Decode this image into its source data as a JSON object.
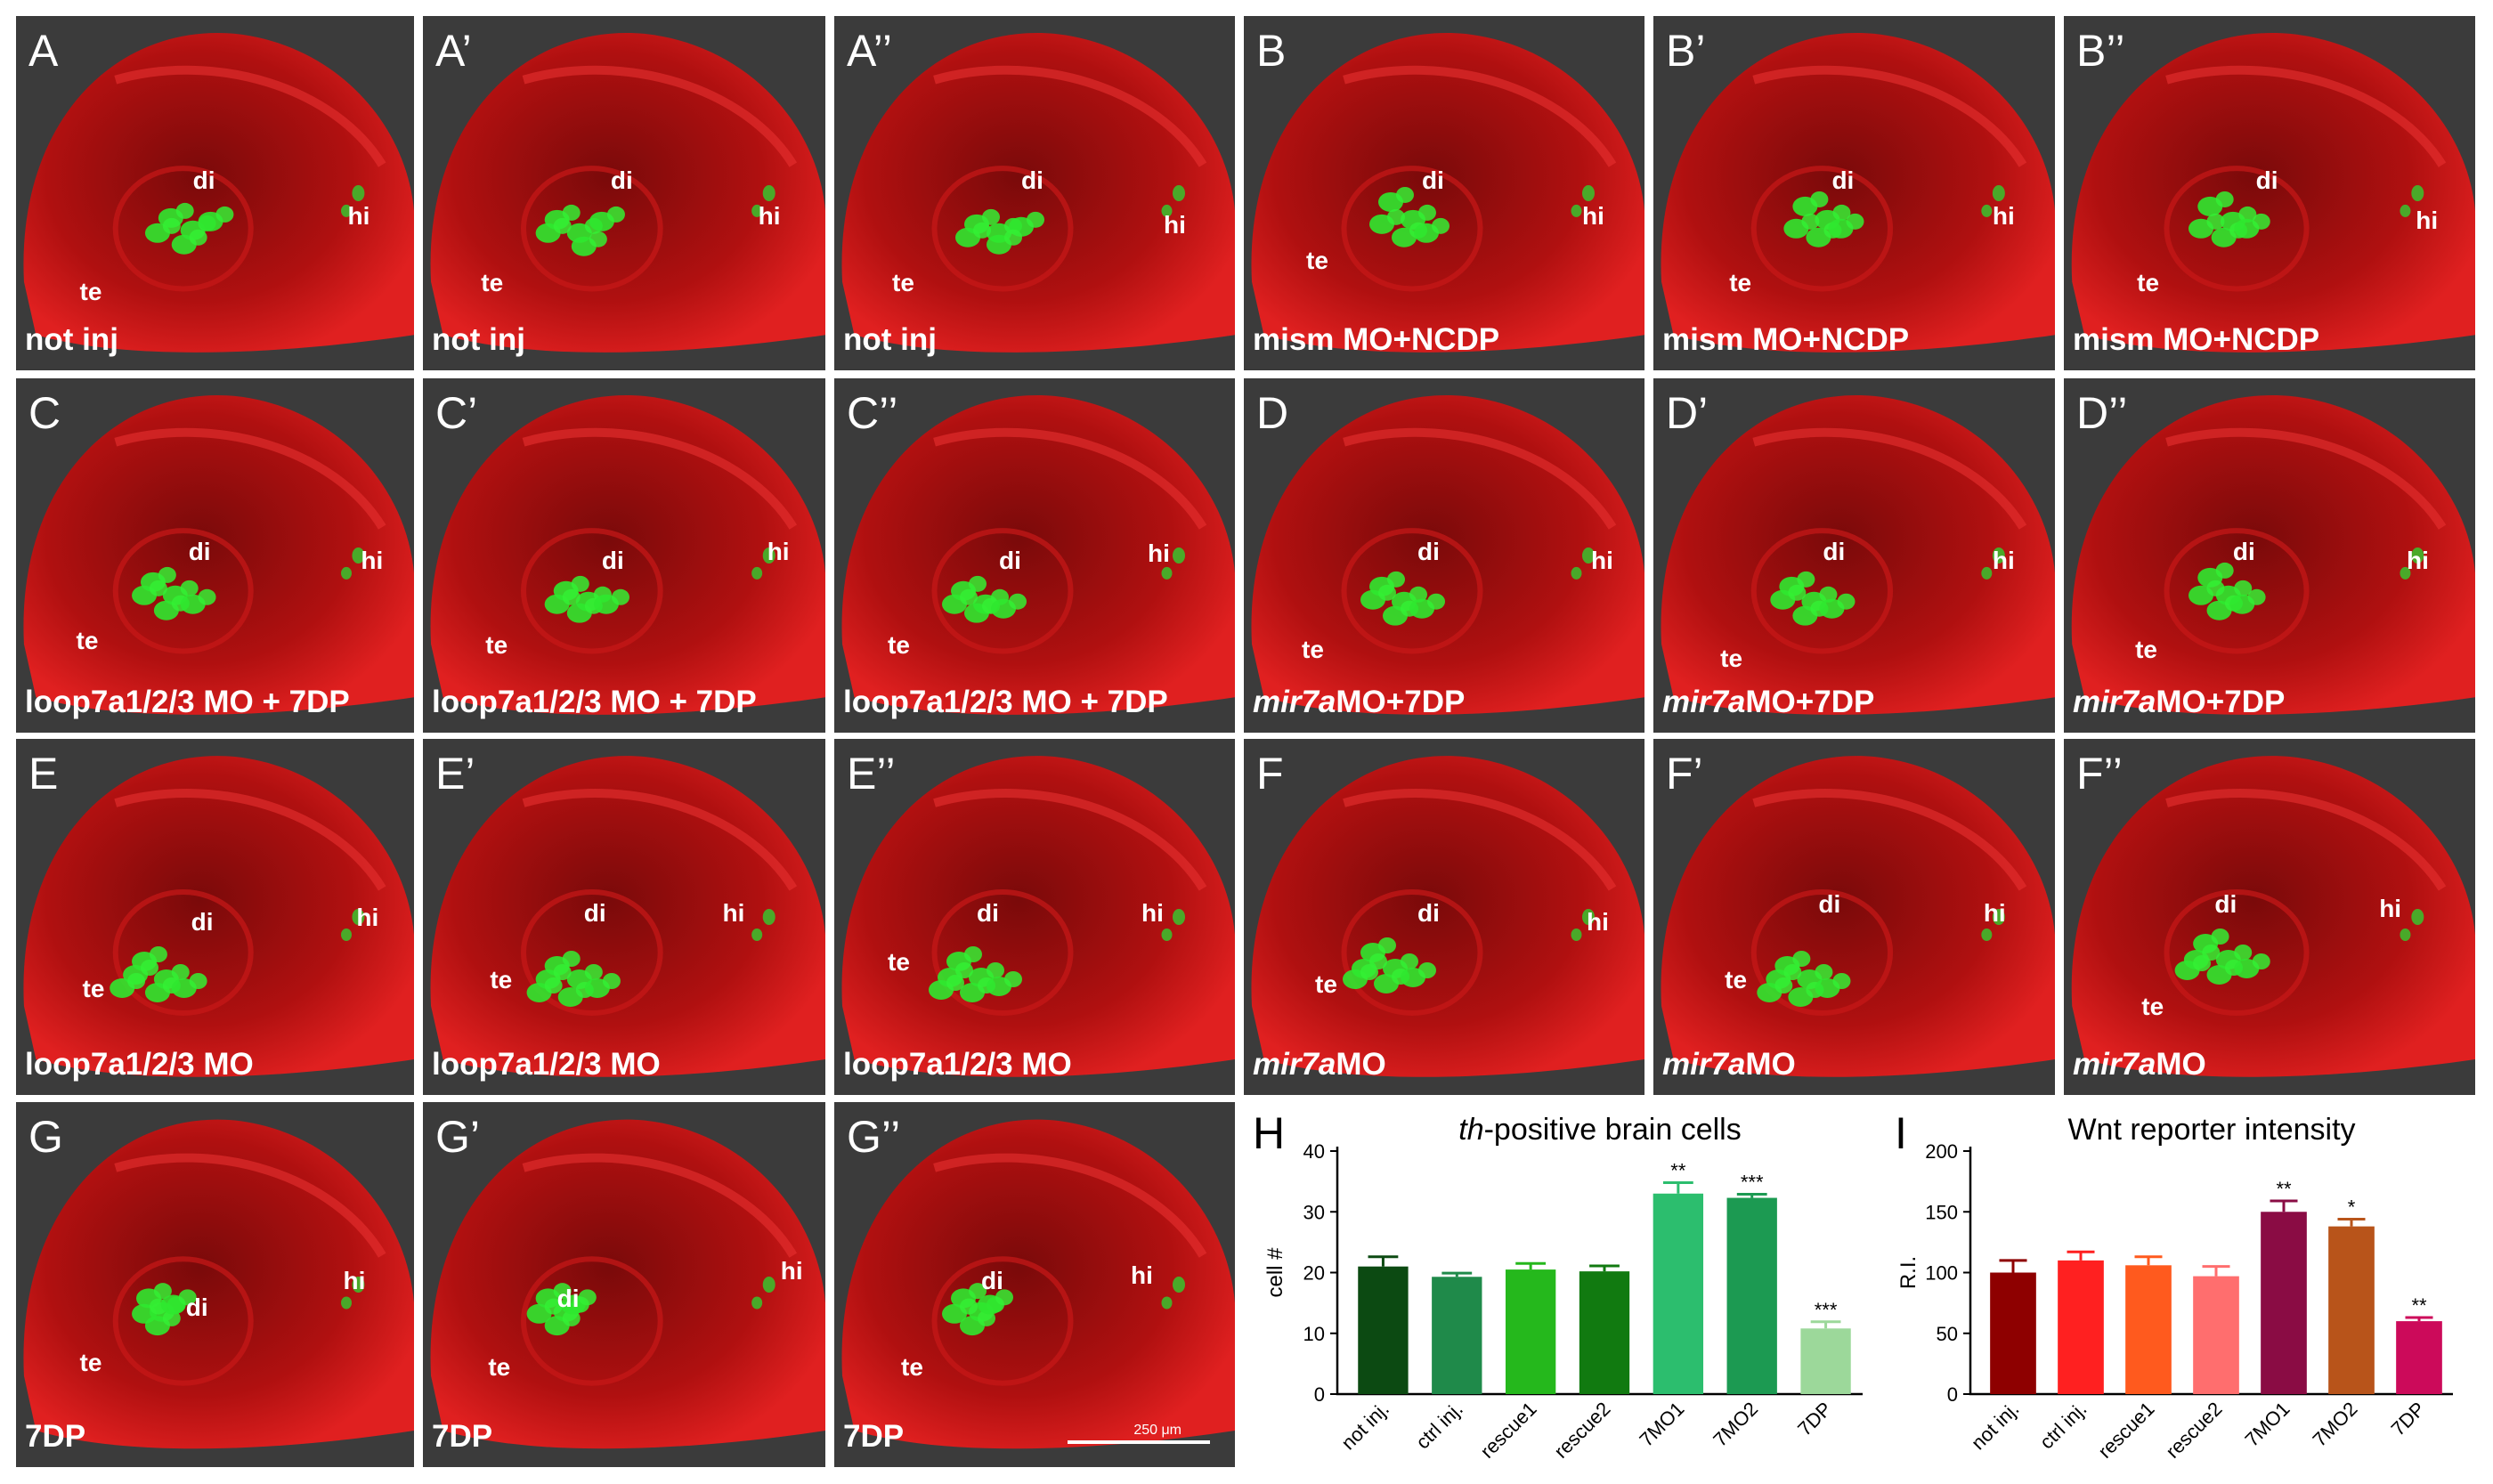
{
  "panels": [
    {
      "letter": "A",
      "cond": "not inj",
      "cond_italic": "",
      "cond_rest": "not inj"
    },
    {
      "letter": "A’",
      "cond": "not inj",
      "cond_italic": "",
      "cond_rest": "not inj"
    },
    {
      "letter": "A’’",
      "cond": "not inj",
      "cond_italic": "",
      "cond_rest": "not inj"
    },
    {
      "letter": "B",
      "cond": "mism MO+NCDP",
      "cond_italic": "",
      "cond_rest": "mism MO+NCDP"
    },
    {
      "letter": "B’",
      "cond": "mism MO+NCDP",
      "cond_italic": "",
      "cond_rest": "mism MO+NCDP"
    },
    {
      "letter": "B’’",
      "cond": "mism MO+NCDP",
      "cond_italic": "",
      "cond_rest": "mism MO+NCDP"
    },
    {
      "letter": "C",
      "cond": "loop7a1/2/3 MO + 7DP",
      "cond_italic": "",
      "cond_rest": "loop7a1/2/3 MO + 7DP"
    },
    {
      "letter": "C’",
      "cond": "loop7a1/2/3 MO + 7DP",
      "cond_italic": "",
      "cond_rest": "loop7a1/2/3 MO + 7DP"
    },
    {
      "letter": "C’’",
      "cond": "loop7a1/2/3 MO + 7DP",
      "cond_italic": "",
      "cond_rest": "loop7a1/2/3 MO + 7DP"
    },
    {
      "letter": "D",
      "cond": "mir7aMO+7DP",
      "cond_italic": "mir7a",
      "cond_rest": "MO+7DP"
    },
    {
      "letter": "D’",
      "cond": "mir7aMO+7DP",
      "cond_italic": "mir7a",
      "cond_rest": "MO+7DP"
    },
    {
      "letter": "D’’",
      "cond": "mir7aMO+7DP",
      "cond_italic": "mir7a",
      "cond_rest": "MO+7DP"
    },
    {
      "letter": "E",
      "cond": "loop7a1/2/3 MO",
      "cond_italic": "",
      "cond_rest": "loop7a1/2/3 MO"
    },
    {
      "letter": "E’",
      "cond": "loop7a1/2/3 MO",
      "cond_italic": "",
      "cond_rest": "loop7a1/2/3 MO"
    },
    {
      "letter": "E’’",
      "cond": "loop7a1/2/3 MO",
      "cond_italic": "",
      "cond_rest": "loop7a1/2/3 MO"
    },
    {
      "letter": "F",
      "cond": "mir7aMO",
      "cond_italic": "mir7a",
      "cond_rest": "MO"
    },
    {
      "letter": "F’",
      "cond": "mir7aMO",
      "cond_italic": "mir7a",
      "cond_rest": "MO"
    },
    {
      "letter": "F’’",
      "cond": "mir7aMO",
      "cond_italic": "mir7a",
      "cond_rest": "MO"
    },
    {
      "letter": "G",
      "cond": "7DP",
      "cond_italic": "",
      "cond_rest": "7DP"
    },
    {
      "letter": "G’",
      "cond": "7DP",
      "cond_italic": "",
      "cond_rest": "7DP"
    },
    {
      "letter": "G’’",
      "cond": "7DP",
      "cond_italic": "",
      "cond_rest": "7DP"
    }
  ],
  "regions": {
    "di": "di",
    "hi": "hi",
    "te": "te"
  },
  "scale_bar": "250 μm",
  "chart_data": [
    {
      "type": "bar",
      "panel_letter": "H",
      "title": "th-positive brain cells",
      "title_italic": "th",
      "title_rest": "-positive brain cells",
      "ylabel": "cell #",
      "ylim": [
        0,
        40
      ],
      "yticks": [
        0,
        10,
        20,
        30,
        40
      ],
      "categories": [
        "not inj.",
        "ctrl inj.",
        "rescue1",
        "rescue2",
        "7MO1",
        "7MO2",
        "7DP"
      ],
      "values": [
        21,
        19.3,
        20.5,
        20.2,
        33,
        32.3,
        10.8
      ],
      "errors": [
        1.6,
        0.6,
        1.0,
        0.9,
        1.8,
        0.6,
        1.1
      ],
      "significance": [
        "",
        "",
        "",
        "",
        "**",
        "***",
        "***"
      ],
      "colors": [
        "#0c4a12",
        "#1f8a4a",
        "#25b81c",
        "#117a10",
        "#2cbe6e",
        "#1c9a52",
        "#9cd89a"
      ]
    },
    {
      "type": "bar",
      "panel_letter": "I",
      "title": "Wnt reporter intensity",
      "ylabel": "R.I.",
      "ylim": [
        0,
        200
      ],
      "yticks": [
        0,
        50,
        100,
        150,
        200
      ],
      "categories": [
        "not inj.",
        "ctrl inj.",
        "rescue1",
        "rescue2",
        "7MO1",
        "7MO2",
        "7DP"
      ],
      "values": [
        100,
        110,
        106,
        97,
        150,
        138,
        60
      ],
      "errors": [
        10,
        7,
        7,
        8,
        9,
        6,
        3
      ],
      "significance": [
        "",
        "",
        "",
        "",
        "**",
        "*",
        "**"
      ],
      "colors": [
        "#8e0000",
        "#ff2020",
        "#ff5a1e",
        "#ff6e6e",
        "#8a0c44",
        "#b8541a",
        "#cc0a5a"
      ]
    }
  ]
}
